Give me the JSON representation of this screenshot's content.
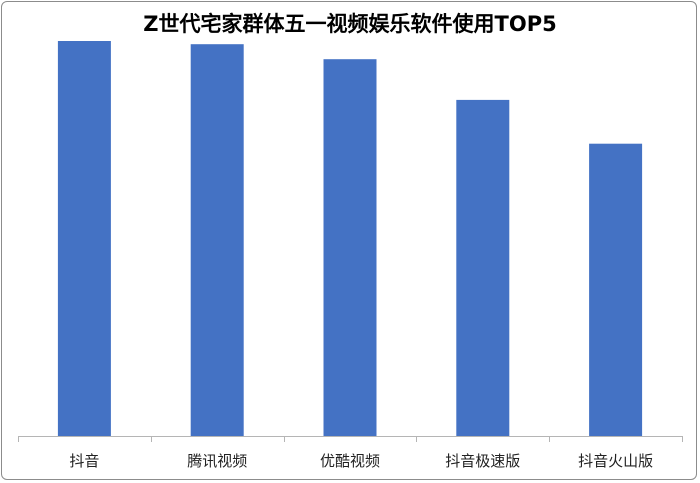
{
  "chart_data": {
    "type": "bar",
    "title": "Z世代宅家群体五一视频娱乐软件使用TOP5",
    "categories": [
      "抖音",
      "腾讯视频",
      "优酷视频",
      "抖音极速版",
      "抖音火山版"
    ],
    "series": [
      {
        "values": [
          100,
          99.2,
          95.4,
          85.1,
          74.0
        ]
      }
    ],
    "ylim": [
      0,
      100
    ],
    "xlabel": "",
    "ylabel": "",
    "grid": false,
    "legend": "none",
    "bar_color": "#4472C4"
  }
}
